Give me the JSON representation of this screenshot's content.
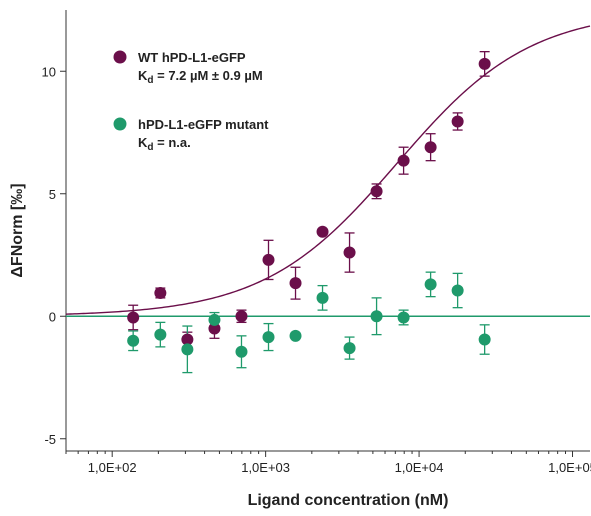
{
  "chart_data": {
    "type": "scatter",
    "xlabel": "Ligand concentration (nM)",
    "ylabel": "ΔFNorm [‰]",
    "x_scale": "log",
    "xlim": [
      50,
      130000
    ],
    "ylim": [
      -5.5,
      12.5
    ],
    "x_ticks": [
      {
        "value": 100,
        "label": "1,0E+02"
      },
      {
        "value": 1000,
        "label": "1,0E+03"
      },
      {
        "value": 10000,
        "label": "1,0E+04"
      },
      {
        "value": 100000,
        "label": "1,0E+05"
      }
    ],
    "y_ticks": [
      {
        "value": 10,
        "label": "10"
      },
      {
        "value": 5,
        "label": "5"
      },
      {
        "value": 0,
        "label": "0"
      },
      {
        "value": -5,
        "label": "-5"
      }
    ],
    "grid": false,
    "legend": {
      "placement": "top-left",
      "entries": [
        {
          "line1": "WT hPD-L1-eGFP",
          "kd_prefix": "K",
          "kd_sub": "d",
          "kd_value": " = 7.2 µM ± 0.9 µM"
        },
        {
          "line1": "hPD-L1-eGFP mutant",
          "kd_prefix": "K",
          "kd_sub": "d",
          "kd_value": " = n.a."
        }
      ]
    },
    "series": [
      {
        "name": "WT hPD-L1-eGFP",
        "color": "#6b0f4a",
        "x": [
          137,
          206,
          309,
          464,
          696,
          1044,
          1566,
          2349,
          3523,
          5285,
          7927,
          11891,
          17836,
          26754
        ],
        "y": [
          -0.05,
          0.95,
          -0.95,
          -0.5,
          0.0,
          2.3,
          1.35,
          3.45,
          2.6,
          5.1,
          6.35,
          6.9,
          7.95,
          10.3
        ],
        "err": [
          0.5,
          0.2,
          0.3,
          0.4,
          0.25,
          0.8,
          0.65,
          0.1,
          0.8,
          0.3,
          0.55,
          0.55,
          0.35,
          0.5
        ],
        "fit": {
          "type": "binding",
          "A0": 0.0,
          "A1": 12.5,
          "Kd_nM": 7200
        }
      },
      {
        "name": "hPD-L1-eGFP mutant",
        "color": "#1f9a6b",
        "x": [
          137,
          206,
          309,
          464,
          696,
          1044,
          1566,
          2349,
          3523,
          5285,
          7927,
          11891,
          17836,
          26754
        ],
        "y": [
          -1.0,
          -0.75,
          -1.35,
          -0.15,
          -1.45,
          -0.85,
          -0.8,
          0.75,
          -1.3,
          0.0,
          -0.05,
          1.3,
          1.05,
          -0.95
        ],
        "err": [
          0.4,
          0.5,
          0.95,
          0.3,
          0.65,
          0.55,
          0.05,
          0.5,
          0.45,
          0.75,
          0.3,
          0.5,
          0.7,
          0.6
        ],
        "fit": {
          "type": "flat",
          "value": 0.0
        }
      }
    ]
  }
}
